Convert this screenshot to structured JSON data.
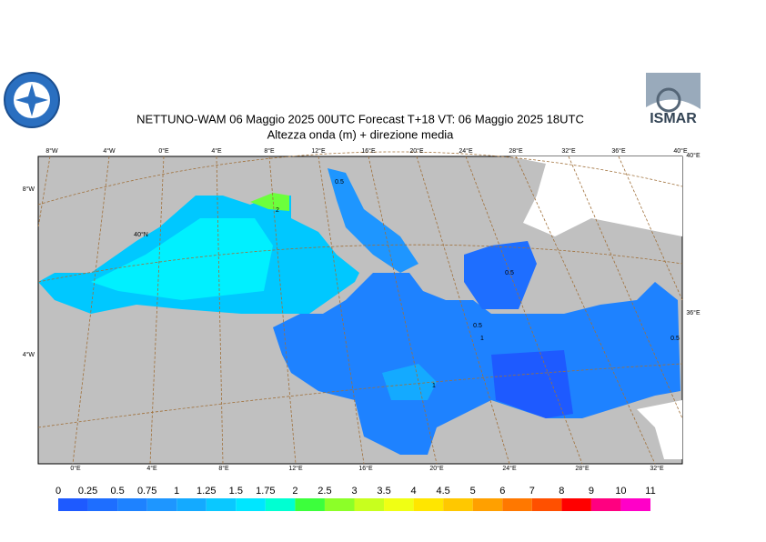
{
  "header": {
    "title": "NETTUNO-WAM 06   Maggio  2025 00UTC Forecast T+18 VT: 06   Maggio  2025 18UTC",
    "subtitle": "Altezza onda (m) + direzione media",
    "logo_text": "ISMAR"
  },
  "map": {
    "top_labels": [
      "8°W",
      "4°W",
      "0°E",
      "4°E",
      "8°E",
      "12°E",
      "16°E",
      "20°E",
      "24°E",
      "28°E",
      "32°E",
      "36°E",
      "40°E"
    ],
    "bottom_labels": [
      "0°E",
      "4°E",
      "8°E",
      "12°E",
      "16°E",
      "20°E",
      "24°E",
      "28°E",
      "32°E"
    ],
    "left_labels": [
      "8°W",
      "4°W"
    ],
    "lat_label": "40°N",
    "right_labels": [
      "40°E",
      "36°E"
    ],
    "contour_labels": [
      "2",
      "1",
      "0.5",
      "0.5",
      "0.5",
      "1",
      "0.5"
    ]
  },
  "colorbar": {
    "levels": [
      0,
      0.25,
      0.5,
      0.75,
      1,
      1.25,
      1.5,
      1.75,
      2,
      2.5,
      3,
      3.5,
      4,
      4.5,
      5,
      6,
      7,
      8,
      9,
      10,
      11
    ],
    "colors": [
      "#1e5aff",
      "#1e6eff",
      "#1e82ff",
      "#1e96ff",
      "#14aaff",
      "#0ac8ff",
      "#00e6ff",
      "#00ffd2",
      "#3cff3c",
      "#8cff28",
      "#c8ff1e",
      "#f0ff14",
      "#ffe600",
      "#ffc800",
      "#ffa000",
      "#ff7800",
      "#ff5000",
      "#ff0000",
      "#ff0080",
      "#ff00c8"
    ]
  }
}
